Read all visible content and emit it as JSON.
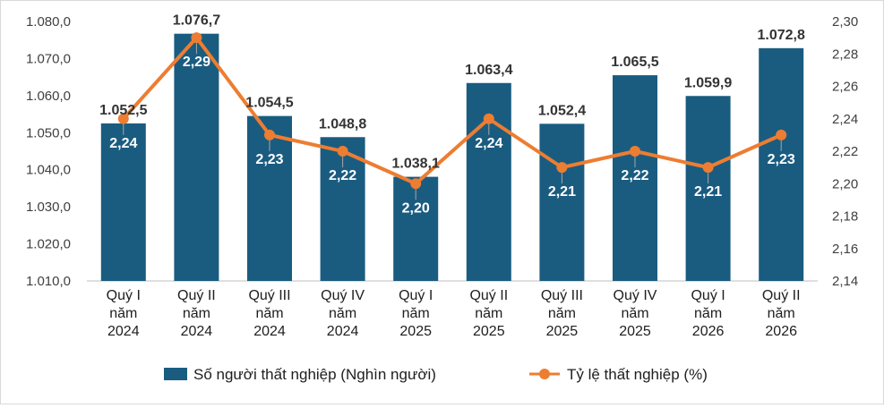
{
  "chart_data": {
    "type": "bar",
    "title": "",
    "categories": [
      [
        "Quý I",
        "năm",
        "2024"
      ],
      [
        "Quý II",
        "năm",
        "2024"
      ],
      [
        "Quý III",
        "năm",
        "2024"
      ],
      [
        "Quý IV",
        "năm",
        "2024"
      ],
      [
        "Quý I",
        "năm",
        "2025"
      ],
      [
        "Quý II",
        "năm",
        "2025"
      ],
      [
        "Quý III",
        "năm",
        "2025"
      ],
      [
        "Quý IV",
        "năm",
        "2025"
      ],
      [
        "Quý I",
        "năm",
        "2026"
      ],
      [
        "Quý II",
        "năm",
        "2026"
      ]
    ],
    "series": [
      {
        "name": "Số người thất nghiệp (Nghìn người)",
        "type": "bar",
        "axis": "left",
        "color": "#1a5c80",
        "values": [
          1052.5,
          1076.7,
          1054.5,
          1048.8,
          1038.1,
          1063.4,
          1052.4,
          1065.5,
          1059.9,
          1072.8
        ],
        "labels": [
          "1.052,5",
          "1.076,7",
          "1.054,5",
          "1.048,8",
          "1.038,1",
          "1.063,4",
          "1.052,4",
          "1.065,5",
          "1.059,9",
          "1.072,8"
        ]
      },
      {
        "name": "Tỷ lệ thất nghiệp (%)",
        "type": "line",
        "axis": "right",
        "color": "#ed7d31",
        "values": [
          2.24,
          2.29,
          2.23,
          2.22,
          2.2,
          2.24,
          2.21,
          2.22,
          2.21,
          2.23
        ],
        "labels": [
          "2,24",
          "2,29",
          "2,23",
          "2,22",
          "2,20",
          "2,24",
          "2,21",
          "2,22",
          "2,21",
          "2,23"
        ]
      }
    ],
    "left_axis": {
      "ylim": [
        1010,
        1080
      ],
      "ticks": [
        "1.010,0",
        "1.020,0",
        "1.030,0",
        "1.040,0",
        "1.050,0",
        "1.060,0",
        "1.070,0",
        "1.080,0"
      ]
    },
    "right_axis": {
      "ylim": [
        2.14,
        2.3
      ],
      "ticks": [
        "2,14",
        "2,16",
        "2,18",
        "2,20",
        "2,22",
        "2,24",
        "2,26",
        "2,28",
        "2,30"
      ]
    },
    "grid": false,
    "legend": "bottom"
  }
}
